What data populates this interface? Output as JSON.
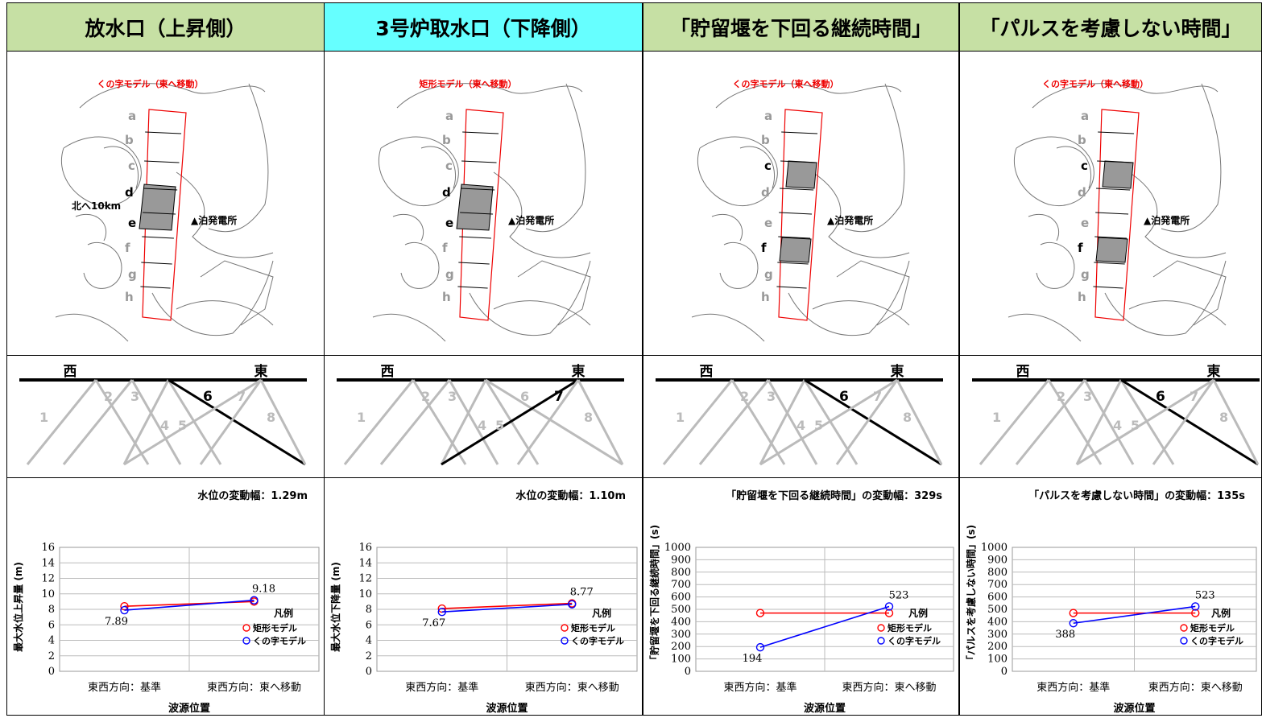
{
  "columns": [
    {
      "header": "放水口（上昇側）",
      "header_bg": "#c6e0a4",
      "map": {
        "model_label": "くの字モデル（東へ移動）",
        "north_label": "北へ10km",
        "plant_label": "▲泊発電所",
        "letters": [
          "a",
          "b",
          "c",
          "d",
          "e",
          "f",
          "g",
          "h"
        ],
        "bold_letters": [
          "d",
          "e"
        ]
      },
      "diagram": {
        "west": "西",
        "east": "東",
        "numbers": [
          "1",
          "2",
          "3",
          "4",
          "5",
          "6",
          "7",
          "8"
        ],
        "highlight": "6"
      },
      "chart_title": "水位の変動幅：1.29m",
      "ylabel": "最大水位上昇量 (m)"
    },
    {
      "header": "3号炉取水口（下降側）",
      "header_bg": "#66ffff",
      "map": {
        "model_label": "矩形モデル（東へ移動）",
        "north_label": "",
        "plant_label": "▲泊発電所",
        "letters": [
          "a",
          "b",
          "c",
          "d",
          "e",
          "f",
          "g",
          "h"
        ],
        "bold_letters": [
          "d",
          "e"
        ]
      },
      "diagram": {
        "west": "西",
        "east": "東",
        "numbers": [
          "1",
          "2",
          "3",
          "4",
          "5",
          "6",
          "7",
          "8"
        ],
        "highlight": "7"
      },
      "chart_title": "水位の変動幅：1.10m",
      "ylabel": "最大水位下降量 (m)"
    },
    {
      "header": "「貯留堰を下回る継続時間」",
      "header_bg": "#c6e0a4",
      "map": {
        "model_label": "くの字モデル（東へ移動）",
        "north_label": "",
        "plant_label": "▲泊発電所",
        "letters": [
          "a",
          "b",
          "c",
          "d",
          "e",
          "f",
          "g",
          "h"
        ],
        "bold_letters": [
          "c",
          "f"
        ]
      },
      "diagram": {
        "west": "西",
        "east": "東",
        "numbers": [
          "1",
          "2",
          "3",
          "4",
          "5",
          "6",
          "7",
          "8"
        ],
        "highlight": "6"
      },
      "chart_title": "「貯留堰を下回る継続時間」の変動幅：329s",
      "ylabel": "「貯留堰を下回る継続時間」(s)"
    },
    {
      "header": "「パルスを考慮しない時間」",
      "header_bg": "#c6e0a4",
      "map": {
        "model_label": "くの字モデル（東へ移動）",
        "north_label": "",
        "plant_label": "▲泊発電所",
        "letters": [
          "a",
          "b",
          "c",
          "d",
          "e",
          "f",
          "g",
          "h"
        ],
        "bold_letters": [
          "c",
          "f"
        ]
      },
      "diagram": {
        "west": "西",
        "east": "東",
        "numbers": [
          "1",
          "2",
          "3",
          "4",
          "5",
          "6",
          "7",
          "8"
        ],
        "highlight": "6"
      },
      "chart_title": "「パルスを考慮しない時間」の変動幅：135s",
      "ylabel": "「パルスを考慮しない時間」(s)"
    }
  ],
  "chart_data": [
    {
      "type": "line",
      "categories": [
        "東西方向：基準",
        "東西方向：東へ移動"
      ],
      "xlabel": "波源位置",
      "ylabel": "最大水位上昇量 (m)",
      "ylim": [
        0,
        16
      ],
      "yticks": [
        0,
        2,
        4,
        6,
        8,
        10,
        12,
        14,
        16
      ],
      "series": [
        {
          "name": "矩形モデル",
          "color": "#ff0000",
          "values": [
            8.4,
            9.0
          ],
          "labels": [
            "",
            ""
          ]
        },
        {
          "name": "くの字モデル",
          "color": "#0000ff",
          "values": [
            7.89,
            9.18
          ],
          "labels": [
            "7.89",
            "9.18"
          ]
        }
      ],
      "legend_title": "凡例",
      "grid": true,
      "legend": "bottom-right"
    },
    {
      "type": "line",
      "categories": [
        "東西方向：基準",
        "東西方向：東へ移動"
      ],
      "xlabel": "波源位置",
      "ylabel": "最大水位下降量 (m)",
      "ylim": [
        0,
        16
      ],
      "yticks": [
        0,
        2,
        4,
        6,
        8,
        10,
        12,
        14,
        16
      ],
      "series": [
        {
          "name": "矩形モデル",
          "color": "#ff0000",
          "values": [
            8.1,
            8.77
          ],
          "labels": [
            "",
            "8.77"
          ]
        },
        {
          "name": "くの字モデル",
          "color": "#0000ff",
          "values": [
            7.67,
            8.65
          ],
          "labels": [
            "7.67",
            ""
          ]
        }
      ],
      "legend_title": "凡例",
      "grid": true,
      "legend": "bottom-right"
    },
    {
      "type": "line",
      "categories": [
        "東西方向：基準",
        "東西方向：東へ移動"
      ],
      "xlabel": "波源位置",
      "ylabel": "「貯留堰を下回る継続時間」(s)",
      "ylim": [
        0,
        1000
      ],
      "yticks": [
        0,
        100,
        200,
        300,
        400,
        500,
        600,
        700,
        800,
        900,
        1000
      ],
      "series": [
        {
          "name": "矩形モデル",
          "color": "#ff0000",
          "values": [
            470,
            470
          ],
          "labels": [
            "",
            ""
          ]
        },
        {
          "name": "くの字モデル",
          "color": "#0000ff",
          "values": [
            194,
            523
          ],
          "labels": [
            "194",
            "523"
          ]
        }
      ],
      "legend_title": "凡例",
      "grid": true,
      "legend": "bottom-right"
    },
    {
      "type": "line",
      "categories": [
        "東西方向：基準",
        "東西方向：東へ移動"
      ],
      "xlabel": "波源位置",
      "ylabel": "「パルスを考慮しない時間」(s)",
      "ylim": [
        0,
        1000
      ],
      "yticks": [
        0,
        100,
        200,
        300,
        400,
        500,
        600,
        700,
        800,
        900,
        1000
      ],
      "series": [
        {
          "name": "矩形モデル",
          "color": "#ff0000",
          "values": [
            470,
            470
          ],
          "labels": [
            "",
            ""
          ]
        },
        {
          "name": "くの字モデル",
          "color": "#0000ff",
          "values": [
            388,
            523
          ],
          "labels": [
            "388",
            "523"
          ]
        }
      ],
      "legend_title": "凡例",
      "grid": true,
      "legend": "bottom-right"
    }
  ]
}
